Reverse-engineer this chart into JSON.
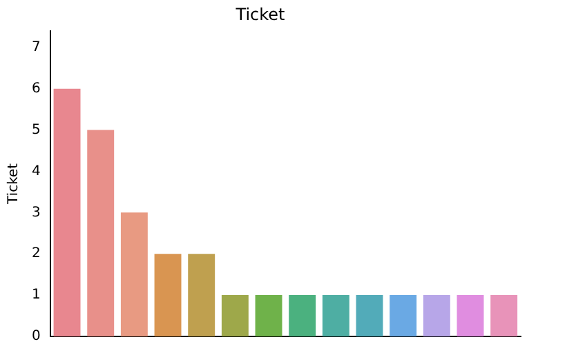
{
  "chart_data": {
    "type": "bar",
    "title": "Ticket",
    "ylabel": "Ticket",
    "categories": [
      null,
      null,
      null,
      null,
      null,
      null,
      null,
      null,
      null,
      null,
      null,
      null,
      null,
      null
    ],
    "values": [
      6,
      5,
      3,
      2,
      2,
      1,
      1,
      1,
      1,
      1,
      1,
      1,
      1,
      1
    ],
    "colors": [
      "#e8878f",
      "#e8908a",
      "#e89a82",
      "#d99551",
      "#bfa04f",
      "#9ea84a",
      "#6fb24a",
      "#4bb17f",
      "#4eaea3",
      "#52abb9",
      "#6aa9e4",
      "#b7a6e8",
      "#e08de0",
      "#e893b9"
    ],
    "ylim": [
      0,
      7.4
    ],
    "yticks": [
      0,
      1,
      2,
      3,
      4,
      5,
      6,
      7
    ],
    "grid": false,
    "legend": false
  }
}
